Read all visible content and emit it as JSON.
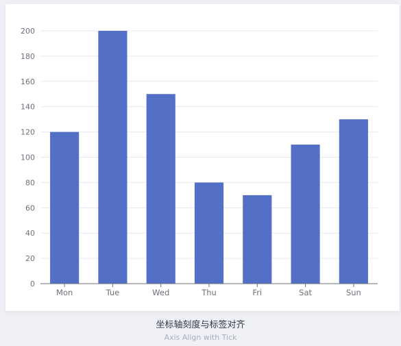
{
  "example": {
    "title": "坐标轴刻度与标签对齐",
    "subtitle": "Axis Align with Tick"
  },
  "chart_data": {
    "type": "bar",
    "title": "",
    "xlabel": "",
    "ylabel": "",
    "categories": [
      "Mon",
      "Tue",
      "Wed",
      "Thu",
      "Fri",
      "Sat",
      "Sun"
    ],
    "values": [
      120,
      200,
      150,
      80,
      70,
      110,
      130
    ],
    "ylim": [
      0,
      200
    ],
    "yticks": [
      0,
      20,
      40,
      60,
      80,
      100,
      120,
      140,
      160,
      180,
      200
    ],
    "grid": true,
    "legend": "none",
    "bar_color": "#5470c6",
    "grid_color": "#e6e9f0",
    "axis_color": "#6e7079",
    "label_color": "#6e7079"
  }
}
